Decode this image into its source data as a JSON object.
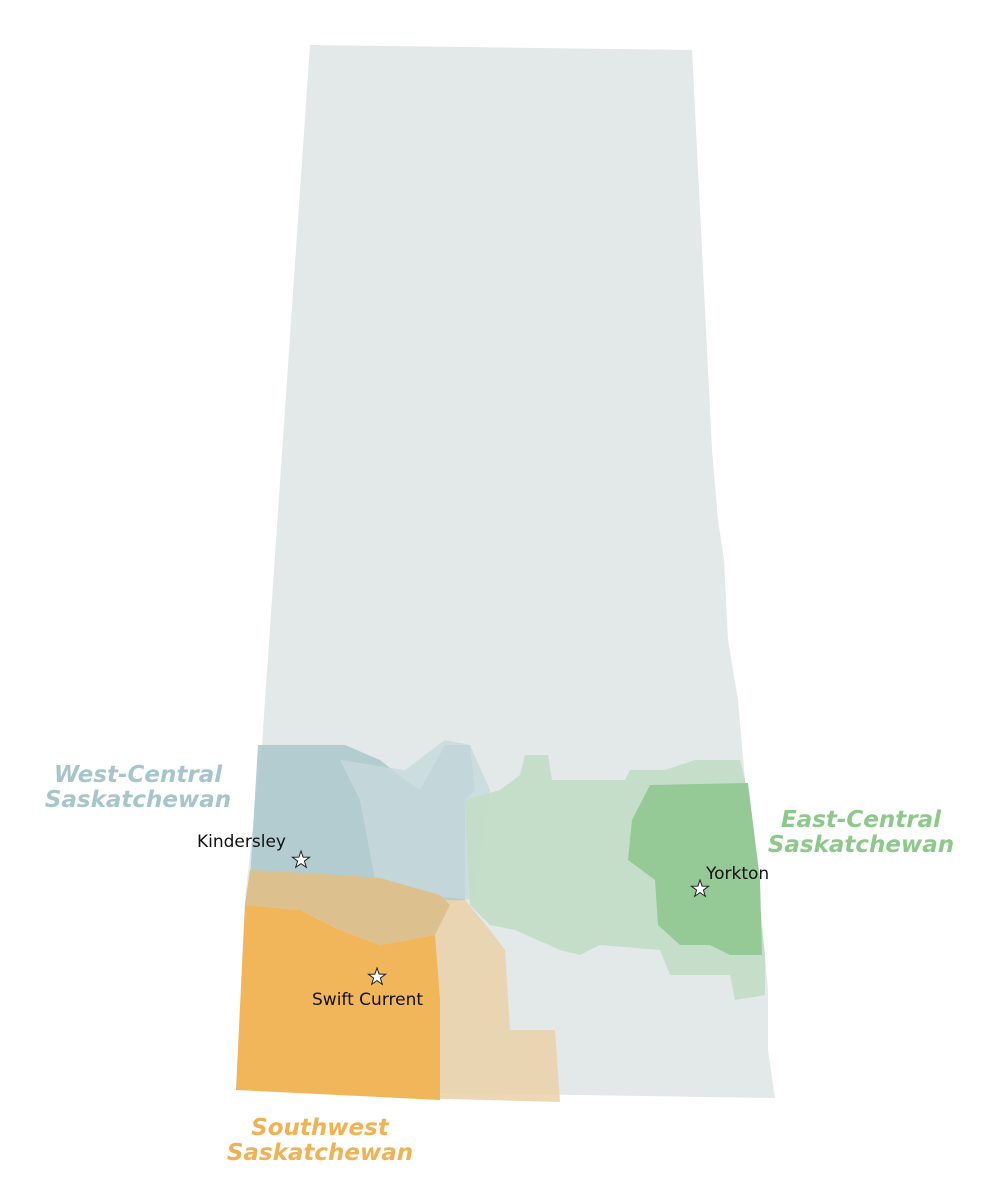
{
  "regions": [
    {
      "lines": [
        "West-Central",
        "Saskatchewan"
      ]
    },
    {
      "lines": [
        "East-Central",
        "Saskatchewan"
      ]
    },
    {
      "lines": [
        "Southwest",
        "Saskatchewan"
      ]
    }
  ],
  "cities": [
    {
      "name": "Kindersley"
    },
    {
      "name": "Yorkton"
    },
    {
      "name": "Swift Current"
    }
  ]
}
